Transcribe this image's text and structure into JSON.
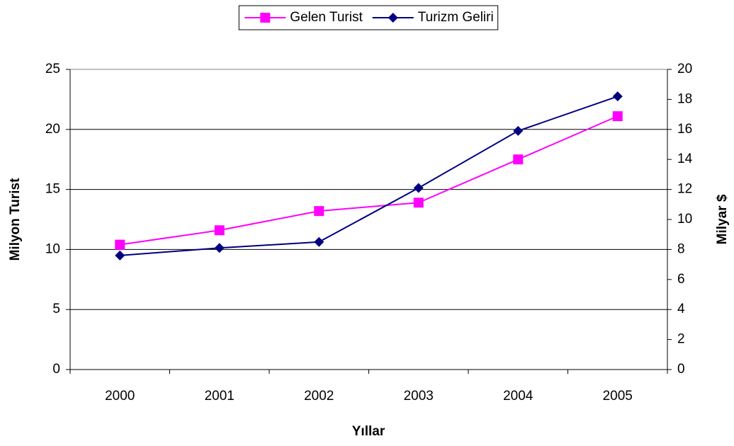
{
  "chart_data": {
    "type": "line",
    "categories": [
      "2000",
      "2001",
      "2002",
      "2003",
      "2004",
      "2005"
    ],
    "series": [
      {
        "name": "Gelen Turist",
        "color": "#ff00ff",
        "marker": "square",
        "values": [
          10.4,
          11.6,
          13.2,
          13.9,
          17.5,
          21.1
        ]
      },
      {
        "name": "Turizm Geliri",
        "color": "#000080",
        "marker": "diamond",
        "axis": "y2",
        "values": [
          7.6,
          8.1,
          8.5,
          12.1,
          15.9,
          18.2
        ]
      }
    ],
    "ylim": [
      0,
      25
    ],
    "yticks": [
      0,
      5,
      10,
      15,
      20,
      25
    ],
    "y2lim": [
      0,
      20
    ],
    "y2ticks": [
      0,
      2,
      4,
      6,
      8,
      10,
      12,
      14,
      16,
      18,
      20
    ],
    "ylabel": "Milyon Turist",
    "y2label": "Milyar $",
    "xlabel": "Yıllar",
    "grid": true,
    "legend": "top"
  }
}
